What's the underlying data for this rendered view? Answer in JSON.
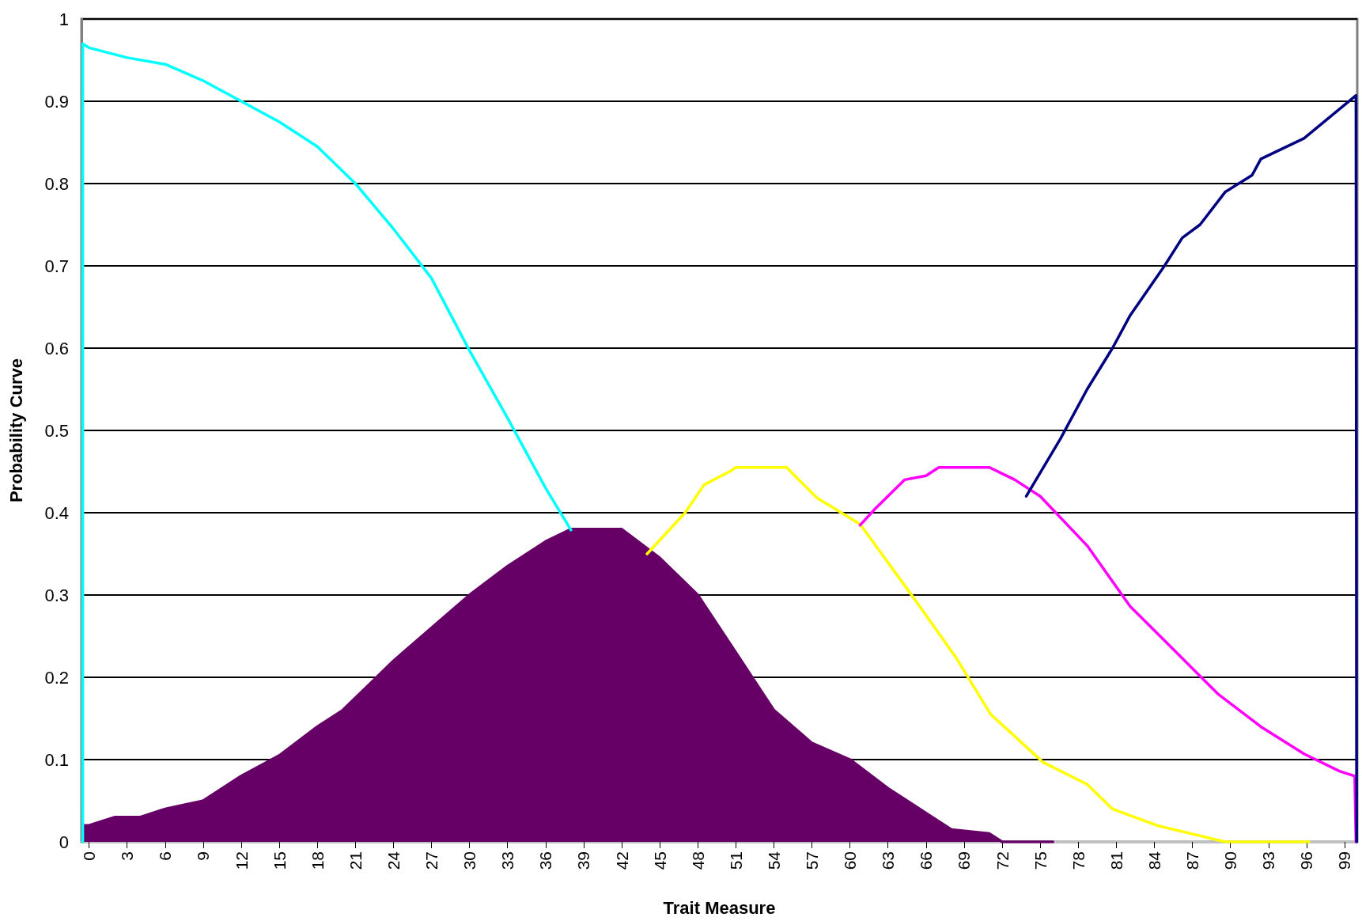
{
  "chart_data": {
    "type": "line",
    "xlabel": "Trait Measure",
    "ylabel": "Probability Curve",
    "xlim": [
      -0.6,
      100
    ],
    "xticks": [
      0,
      3,
      6,
      9,
      12,
      15,
      18,
      21,
      24,
      27,
      30,
      33,
      36,
      39,
      42,
      45,
      48,
      51,
      54,
      57,
      60,
      63,
      66,
      69,
      72,
      75,
      78,
      81,
      84,
      87,
      90,
      93,
      96,
      99
    ],
    "ylim": [
      0,
      1
    ],
    "yticks": [
      0,
      0.1,
      0.2,
      0.3,
      0.4,
      0.5,
      0.6,
      0.7,
      0.8,
      0.9,
      1
    ],
    "grid": "y",
    "marker": "none",
    "line_style": "solid",
    "series": [
      {
        "type": "area",
        "color": "#660066",
        "x": [
          -0.5,
          0,
          2,
          4,
          6,
          9,
          12,
          15,
          18,
          20,
          22,
          24,
          27,
          30,
          33,
          36,
          38,
          42,
          45,
          48,
          51,
          54,
          57,
          60,
          63,
          66,
          68,
          71,
          72,
          76
        ],
        "values": [
          0.02,
          0.02,
          0.03,
          0.03,
          0.04,
          0.05,
          0.08,
          0.105,
          0.14,
          0.16,
          0.19,
          0.22,
          0.26,
          0.3,
          0.335,
          0.365,
          0.38,
          0.38,
          0.345,
          0.3,
          0.23,
          0.16,
          0.12,
          0.1,
          0.065,
          0.035,
          0.015,
          0.01,
          0,
          0
        ]
      },
      {
        "color": "#00ffff",
        "x": [
          -0.5,
          -0.5,
          0,
          3,
          6,
          9,
          12,
          15,
          18,
          21,
          24,
          27,
          30,
          33,
          36,
          38
        ],
        "values": [
          0,
          0.97,
          0.965,
          0.953,
          0.945,
          0.925,
          0.9,
          0.875,
          0.845,
          0.8,
          0.745,
          0.685,
          0.597,
          0.515,
          0.43,
          0.379
        ]
      },
      {
        "color": "#ffff00",
        "x": [
          44,
          47,
          48.5,
          50.5,
          51,
          55,
          57.4,
          60.8,
          65,
          68.4,
          71.1,
          75.2,
          78.7,
          80.7,
          84.2,
          86.9,
          89.6,
          96.2
        ],
        "values": [
          0.35,
          0.4,
          0.434,
          0.45,
          0.455,
          0.455,
          0.418,
          0.386,
          0.297,
          0.223,
          0.155,
          0.097,
          0.07,
          0.04,
          0.02,
          0.01,
          0,
          0
        ]
      },
      {
        "color": "#ff00ff",
        "x": [
          60.8,
          62,
          64.3,
          66,
          67,
          71,
          73,
          75,
          78.7,
          82.1,
          85.5,
          89,
          92.4,
          95.8,
          98.6,
          99.8,
          99.9
        ],
        "values": [
          0.385,
          0.405,
          0.44,
          0.445,
          0.455,
          0.455,
          0.44,
          0.42,
          0.36,
          0.286,
          0.234,
          0.18,
          0.14,
          0.107,
          0.086,
          0.08,
          0
        ]
      },
      {
        "color": "#000080",
        "x": [
          73.9,
          76.6,
          78.7,
          80.7,
          82.1,
          84.8,
          86.2,
          87.6,
          89.6,
          91.7,
          92.4,
          95.8,
          99.9,
          99.95
        ],
        "values": [
          0.42,
          0.49,
          0.55,
          0.6,
          0.64,
          0.7,
          0.734,
          0.75,
          0.79,
          0.81,
          0.83,
          0.855,
          0.907,
          0
        ]
      }
    ]
  }
}
